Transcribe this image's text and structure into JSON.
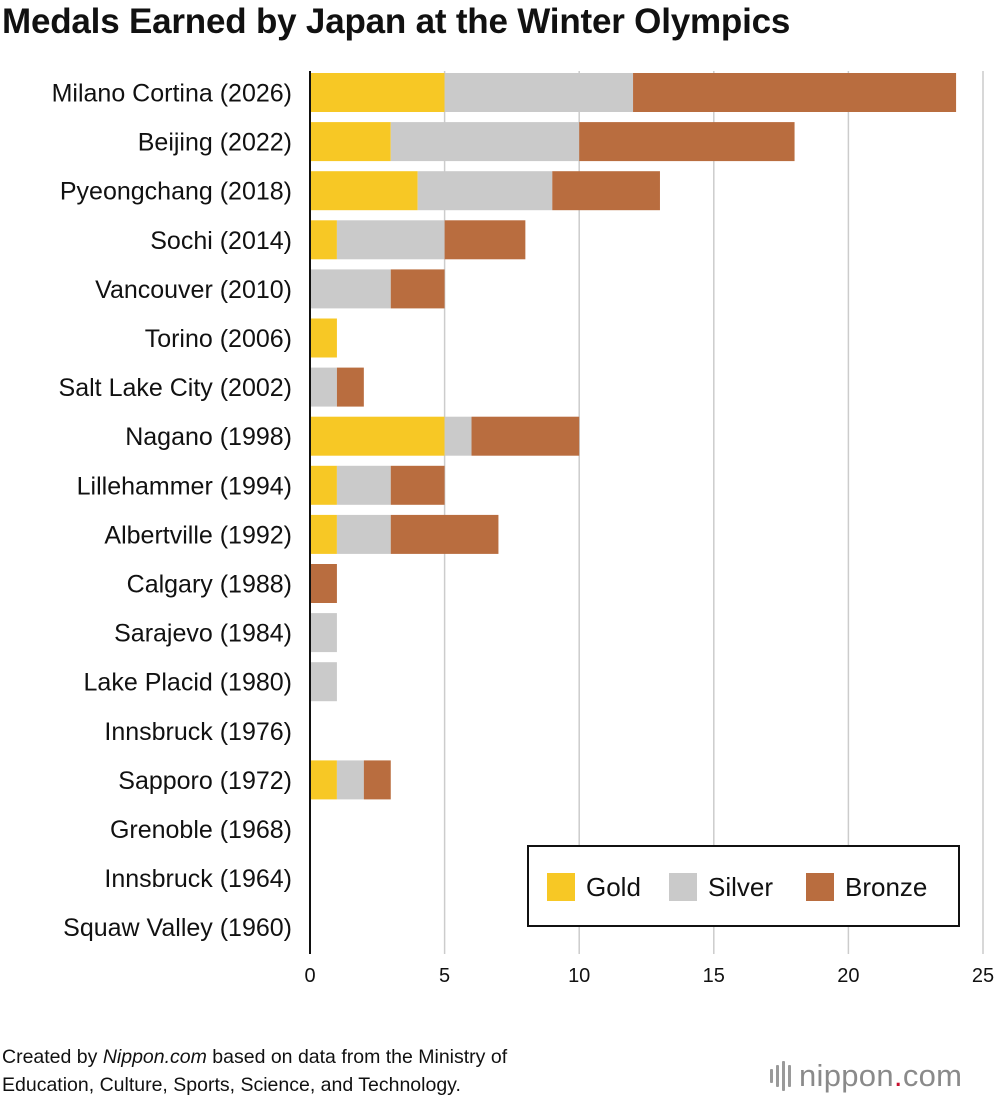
{
  "title": "Medals Earned by Japan at the Winter Olympics",
  "credit": {
    "prefix": "Created by ",
    "site": "Nippon.com",
    "suffix": " based on data from the Ministry of",
    "line2": "Education, Culture, Sports, Science, and Technology."
  },
  "logo": {
    "name": "nippon",
    "dot": ".",
    "tld": "com"
  },
  "colors": {
    "gold": "#f7c825",
    "silver": "#cacaca",
    "bronze": "#b96d3f",
    "grid": "#cccccc"
  },
  "chart_data": {
    "type": "bar",
    "orientation": "horizontal",
    "stacked": true,
    "title": "Medals Earned by Japan at the Winter Olympics",
    "categories": [
      "Milano Cortina (2026)",
      "Beijing (2022)",
      "Pyeongchang (2018)",
      "Sochi (2014)",
      "Vancouver (2010)",
      "Torino (2006)",
      "Salt Lake City (2002)",
      "Nagano (1998)",
      "Lillehammer (1994)",
      "Albertville (1992)",
      "Calgary (1988)",
      "Sarajevo (1984)",
      "Lake Placid (1980)",
      "Innsbruck (1976)",
      "Sapporo (1972)",
      "Grenoble (1968)",
      "Innsbruck (1964)",
      "Squaw Valley (1960)"
    ],
    "series": [
      {
        "name": "Gold",
        "color": "#f7c825",
        "values": [
          5,
          3,
          4,
          1,
          0,
          1,
          0,
          5,
          1,
          1,
          0,
          0,
          0,
          0,
          1,
          0,
          0,
          0
        ]
      },
      {
        "name": "Silver",
        "color": "#cacaca",
        "values": [
          7,
          7,
          5,
          4,
          3,
          0,
          1,
          1,
          2,
          2,
          0,
          1,
          1,
          0,
          1,
          0,
          0,
          0
        ]
      },
      {
        "name": "Bronze",
        "color": "#b96d3f",
        "values": [
          12,
          8,
          4,
          3,
          2,
          0,
          1,
          4,
          2,
          4,
          1,
          0,
          0,
          0,
          1,
          0,
          0,
          0
        ]
      }
    ],
    "xlim": [
      0,
      25
    ],
    "xticks": [
      0,
      5,
      10,
      15,
      20,
      25
    ],
    "xlabel": "",
    "ylabel": "",
    "grid": true,
    "legend": "bottom-right"
  }
}
